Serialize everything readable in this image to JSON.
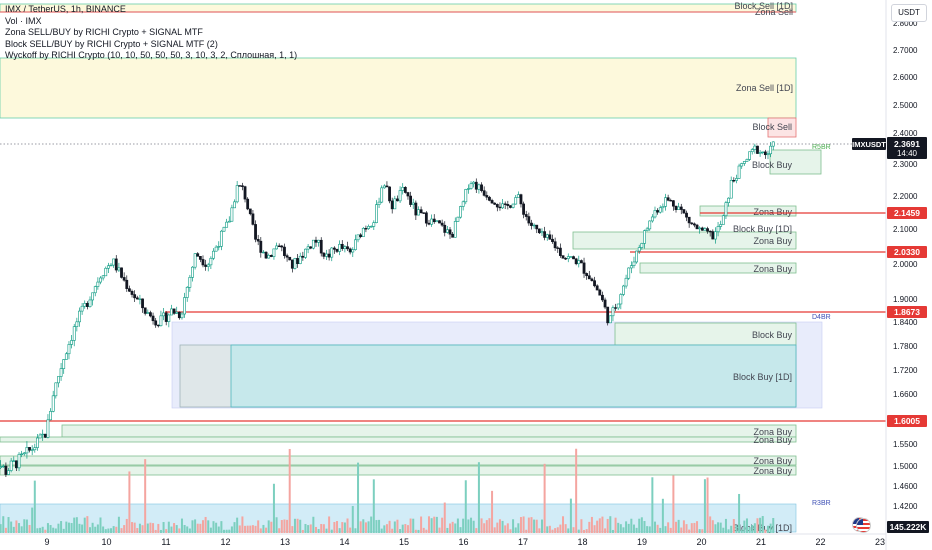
{
  "legend": {
    "symbol": "IMX / TetherUS, 1h, BINANCE",
    "vol": "Vol · IMX",
    "ind1": "Zona SELL/BUY by RICHI Crypto + SIGNAL MTF",
    "ind2": "Block SELL/BUY by RICHI Crypto + SIGNAL MTF (2)",
    "ind3": "Wyckoff by RICHI Crypto  (10, 10, 50, 50, 50, 3, 10, 3, 2, Сплошная, 1, 1)"
  },
  "unit": "USDT",
  "colors": {
    "up": "#089981",
    "down": "#131722",
    "red_line": "#e53935",
    "sell_fill": "#fdf9dc",
    "sell_border": "#66cdaa",
    "buy_fill": "#e6f4ea",
    "buy_border": "#7fbf8f",
    "block_buy_fill": "#c6e8eb",
    "block_buy_border": "#4fb6bd",
    "d4br_fill": "#e8ecfb",
    "vol_up": "#7ccfbf",
    "vol_down": "#f4a5a0"
  },
  "chart_data": {
    "type": "candlestick",
    "ylim": [
      1.39,
      2.86
    ],
    "y_ticks": [
      "2.8000",
      "2.7000",
      "2.6000",
      "2.5000",
      "2.4000",
      "2.3000",
      "2.2000",
      "2.1000",
      "2.0000",
      "1.9000",
      "1.8400",
      "1.7800",
      "1.7200",
      "1.6600",
      "1.6000",
      "1.5500",
      "1.5000",
      "1.4600",
      "1.4200"
    ],
    "x_ticks": [
      "9",
      "10",
      "11",
      "12",
      "13",
      "14",
      "15",
      "16",
      "17",
      "18",
      "19",
      "20",
      "21",
      "22",
      "23"
    ],
    "price_series": [
      [
        8.0,
        1.53
      ],
      [
        8.3,
        1.49
      ],
      [
        8.6,
        1.52
      ],
      [
        8.9,
        1.56
      ],
      [
        9.0,
        1.58
      ],
      [
        9.1,
        1.66
      ],
      [
        9.3,
        1.76
      ],
      [
        9.5,
        1.84
      ],
      [
        9.7,
        1.9
      ],
      [
        9.9,
        1.97
      ],
      [
        10.1,
        2.01
      ],
      [
        10.3,
        1.95
      ],
      [
        10.5,
        1.9
      ],
      [
        10.7,
        1.86
      ],
      [
        10.9,
        1.84
      ],
      [
        11.1,
        1.87
      ],
      [
        11.25,
        1.86
      ],
      [
        11.35,
        1.93
      ],
      [
        11.5,
        2.03
      ],
      [
        11.7,
        2.0
      ],
      [
        11.9,
        2.07
      ],
      [
        12.05,
        2.12
      ],
      [
        12.2,
        2.23
      ],
      [
        12.3,
        2.22
      ],
      [
        12.5,
        2.07
      ],
      [
        12.7,
        2.02
      ],
      [
        12.9,
        2.06
      ],
      [
        13.1,
        1.99
      ],
      [
        13.3,
        2.03
      ],
      [
        13.5,
        2.07
      ],
      [
        13.7,
        2.02
      ],
      [
        13.9,
        2.05
      ],
      [
        14.1,
        2.03
      ],
      [
        14.3,
        2.1
      ],
      [
        14.5,
        2.13
      ],
      [
        14.65,
        2.25
      ],
      [
        14.8,
        2.17
      ],
      [
        15.0,
        2.22
      ],
      [
        15.2,
        2.15
      ],
      [
        15.4,
        2.13
      ],
      [
        15.6,
        2.11
      ],
      [
        15.8,
        2.08
      ],
      [
        16.0,
        2.18
      ],
      [
        16.1,
        2.25
      ],
      [
        16.3,
        2.22
      ],
      [
        16.5,
        2.19
      ],
      [
        16.7,
        2.16
      ],
      [
        16.9,
        2.2
      ],
      [
        17.1,
        2.12
      ],
      [
        17.3,
        2.08
      ],
      [
        17.5,
        2.06
      ],
      [
        17.7,
        2.02
      ],
      [
        17.9,
        2.01
      ],
      [
        18.1,
        1.97
      ],
      [
        18.3,
        1.91
      ],
      [
        18.45,
        1.84
      ],
      [
        18.6,
        1.9
      ],
      [
        18.8,
        1.99
      ],
      [
        19.0,
        2.07
      ],
      [
        19.2,
        2.15
      ],
      [
        19.4,
        2.19
      ],
      [
        19.6,
        2.17
      ],
      [
        19.8,
        2.12
      ],
      [
        20.0,
        2.09
      ],
      [
        20.2,
        2.08
      ],
      [
        20.35,
        2.12
      ],
      [
        20.5,
        2.24
      ],
      [
        20.7,
        2.3
      ],
      [
        20.9,
        2.35
      ],
      [
        21.1,
        2.33
      ],
      [
        21.25,
        2.37
      ]
    ],
    "red_levels": [
      "2.1459",
      "2.0330",
      "1.8673",
      "1.6005"
    ],
    "current_price": "2.3691",
    "countdown": "14:40",
    "symbol_tag": "IMXUSDT",
    "volume_tag": "145.222K"
  },
  "zones": [
    {
      "label": "Block Sell [1D]"
    },
    {
      "label": "Zona Sell"
    },
    {
      "label": "Zona Sell [1D]"
    },
    {
      "label": "Block Sell"
    },
    {
      "label": "Block Buy"
    },
    {
      "label": "Zona Buy"
    },
    {
      "label": "Block Buy [1D]"
    },
    {
      "label": "Zona Buy"
    },
    {
      "label": "Zona Buy"
    },
    {
      "label": "Block Buy"
    },
    {
      "label": "Block Buy [1D]"
    },
    {
      "label": "Zona Buy"
    },
    {
      "label": "Zona Buy"
    },
    {
      "label": "Zona Buy"
    },
    {
      "label": "Zona Buy"
    },
    {
      "label": "Block Buy [1D]"
    }
  ],
  "markers": {
    "r5br": "R5BR",
    "d4br": "D4BR",
    "r3br": "R3BR"
  }
}
